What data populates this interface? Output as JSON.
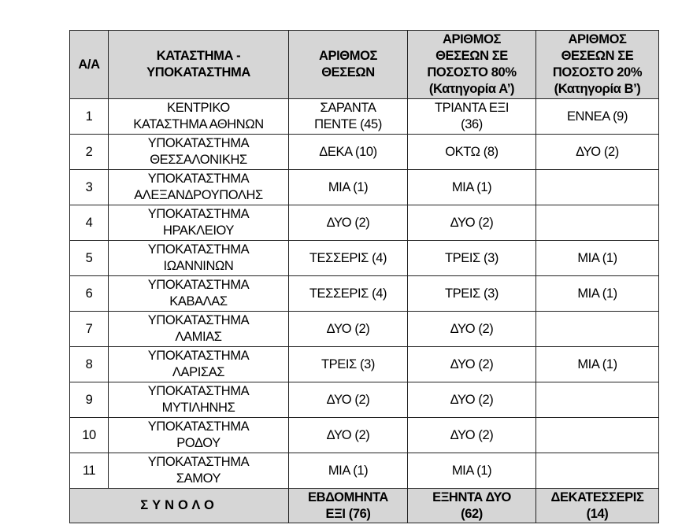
{
  "headers": [
    "Α/Α",
    "ΚΑΤΑΣΤΗΜΑ -\nΥΠΟΚΑΤΑΣΤΗΜΑ",
    "ΑΡΙΘΜΟΣ\nΘΕΣΕΩΝ",
    "ΑΡΙΘΜΟΣ\nΘΕΣΕΩΝ ΣΕ\nΠΟΣΟΣΤΟ 80%\n(Κατηγορία Α’)",
    "ΑΡΙΘΜΟΣ\nΘΕΣΕΩΝ ΣΕ\nΠΟΣΟΣΤΟ 20%\n(Κατηγορία Β’)"
  ],
  "rows": [
    [
      "1",
      "ΚΕΝΤΡΙΚΟ\nΚΑΤΑΣΤΗΜΑ ΑΘΗΝΩΝ",
      "ΣΑΡΑΝΤΑ\nΠΕΝΤΕ (45)",
      "ΤΡΙΑΝΤΑ ΕΞΙ\n(36)",
      "ΕΝΝΕΑ (9)"
    ],
    [
      "2",
      "ΥΠΟΚΑΤΑΣΤΗΜΑ\nΘΕΣΣΑΛΟΝΙΚΗΣ",
      "ΔΕΚΑ (10)",
      "ΟΚΤΩ (8)",
      "ΔΥΟ (2)"
    ],
    [
      "3",
      "ΥΠΟΚΑΤΑΣΤΗΜΑ\nΑΛΕΞΑΝΔΡΟΥΠΟΛΗΣ",
      "ΜΙΑ (1)",
      "ΜΙΑ (1)",
      ""
    ],
    [
      "4",
      "ΥΠΟΚΑΤΑΣΤΗΜΑ\nΗΡΑΚΛΕΙΟΥ",
      "ΔΥΟ (2)",
      "ΔΥΟ (2)",
      ""
    ],
    [
      "5",
      "ΥΠΟΚΑΤΑΣΤΗΜΑ\nΙΩΑΝΝΙΝΩΝ",
      "ΤΕΣΣΕΡΙΣ (4)",
      "ΤΡΕΙΣ (3)",
      "ΜΙΑ (1)"
    ],
    [
      "6",
      "ΥΠΟΚΑΤΑΣΤΗΜΑ\nΚΑΒΑΛΑΣ",
      "ΤΕΣΣΕΡΙΣ (4)",
      "ΤΡΕΙΣ (3)",
      "ΜΙΑ (1)"
    ],
    [
      "7",
      "ΥΠΟΚΑΤΑΣΤΗΜΑ\nΛΑΜΙΑΣ",
      "ΔΥΟ (2)",
      "ΔΥΟ (2)",
      ""
    ],
    [
      "8",
      "ΥΠΟΚΑΤΑΣΤΗΜΑ\nΛΑΡΙΣΑΣ",
      "ΤΡΕΙΣ (3)",
      "ΔΥΟ (2)",
      "ΜΙΑ (1)"
    ],
    [
      "9",
      "ΥΠΟΚΑΤΑΣΤΗΜΑ\nΜΥΤΙΛΗΝΗΣ",
      "ΔΥΟ (2)",
      "ΔΥΟ (2)",
      ""
    ],
    [
      "10",
      "ΥΠΟΚΑΤΑΣΤΗΜΑ\nΡΟΔΟΥ",
      "ΔΥΟ (2)",
      "ΔΥΟ (2)",
      ""
    ],
    [
      "11",
      "ΥΠΟΚΑΤΑΣΤΗΜΑ\nΣΑΜΟΥ",
      "ΜΙΑ (1)",
      "ΜΙΑ (1)",
      ""
    ]
  ],
  "total": {
    "label": "ΣΥΝΟΛΟ",
    "positions": "ΕΒΔΟΜΗΝΤΑ\nΕΞΙ (76)",
    "cat_a": "ΕΞΗΝΤΑ ΔΥΟ\n(62)",
    "cat_b": "ΔΕΚΑΤΕΣΣΕΡΙΣ\n(14)"
  },
  "colors": {
    "header_bg": "#d6d6d6",
    "border": "#222222"
  }
}
